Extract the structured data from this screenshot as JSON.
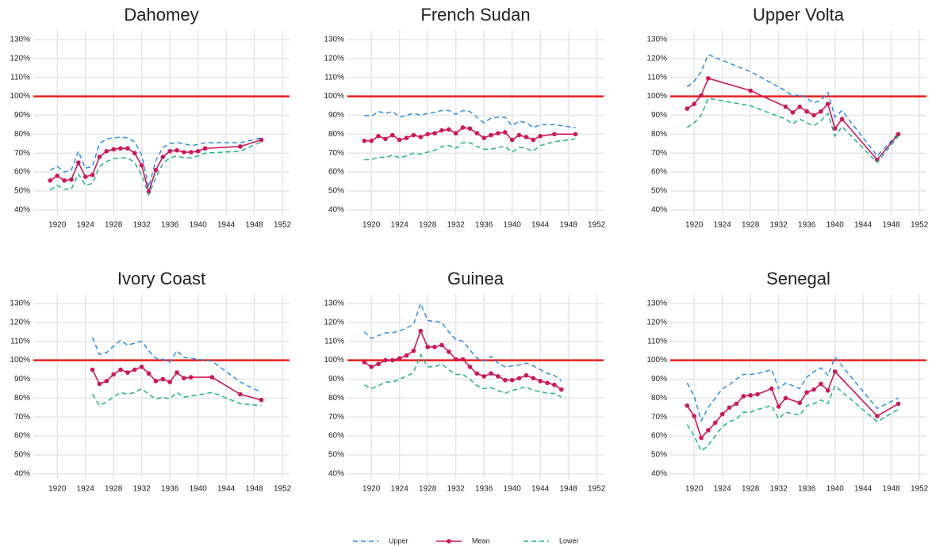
{
  "chart_data": [
    {
      "type": "line",
      "title": "Dahomey",
      "x": [
        1919,
        1920,
        1921,
        1922,
        1923,
        1924,
        1925,
        1926,
        1927,
        1928,
        1929,
        1930,
        1931,
        1932,
        1933,
        1934,
        1935,
        1936,
        1937,
        1938,
        1939,
        1940,
        1941,
        1946,
        1949
      ],
      "series": [
        {
          "values": [
            61,
            63,
            60,
            61,
            71,
            62,
            63,
            75,
            77.5,
            78,
            78.5,
            78,
            76,
            69,
            52,
            66,
            73,
            75,
            75.5,
            75,
            74,
            74.5,
            75.5,
            75.5,
            78
          ]
        },
        {
          "values": [
            55.5,
            58,
            55.5,
            56,
            65,
            57.5,
            58.5,
            68,
            71,
            72,
            72.5,
            72.5,
            70,
            63.5,
            49.5,
            61,
            68,
            71,
            71.5,
            70.5,
            70.5,
            71,
            72.5,
            73.5,
            77
          ]
        },
        {
          "values": [
            50.5,
            53,
            51,
            51,
            59,
            53,
            54,
            63,
            65.5,
            67,
            67.5,
            67.5,
            65,
            58.5,
            48,
            57,
            64.5,
            67.5,
            68.5,
            67.5,
            67.5,
            68.5,
            70,
            71,
            76
          ]
        }
      ],
      "xlim": [
        1916.6,
        1953
      ],
      "ylim": [
        37,
        135
      ],
      "xticks": [
        1920,
        1924,
        1928,
        1932,
        1936,
        1940,
        1944,
        1948,
        1952
      ],
      "yticks": [
        {
          "value": 40,
          "label": "40%"
        },
        {
          "value": 50,
          "label": "50%"
        },
        {
          "value": 60,
          "label": "60%"
        },
        {
          "value": 70,
          "label": "70%"
        },
        {
          "value": 80,
          "label": "80%"
        },
        {
          "value": 90,
          "label": "90%"
        },
        {
          "value": 100,
          "label": "100%"
        },
        {
          "value": 110,
          "label": "110%"
        },
        {
          "value": 120,
          "label": "120%"
        },
        {
          "value": 130,
          "label": "130%"
        }
      ],
      "hline": 100,
      "hline_color": "#e8201c",
      "grid": true
    },
    {
      "type": "line",
      "title": "French Sudan",
      "x": [
        1919,
        1920,
        1921,
        1922,
        1923,
        1924,
        1925,
        1926,
        1927,
        1928,
        1929,
        1930,
        1931,
        1932,
        1933,
        1934,
        1935,
        1936,
        1937,
        1938,
        1939,
        1940,
        1941,
        1942,
        1943,
        1944,
        1946,
        1949
      ],
      "series": [
        {
          "values": [
            90,
            89.5,
            92,
            91,
            92,
            89,
            90,
            91,
            90,
            91,
            91.5,
            92.5,
            92.5,
            90.5,
            92.5,
            92,
            89,
            86,
            88.5,
            89,
            89,
            84.5,
            87,
            86,
            83.5,
            85,
            85,
            83.5
          ]
        },
        {
          "values": [
            76.5,
            76.5,
            79,
            77.5,
            79.5,
            77,
            78,
            79.5,
            78.5,
            80,
            80.5,
            82,
            82.5,
            80.5,
            83.5,
            83,
            80.5,
            78,
            79.5,
            80.5,
            81,
            77,
            79.5,
            78.5,
            77,
            79,
            80,
            80
          ]
        },
        {
          "values": [
            66.5,
            66.5,
            68,
            67.5,
            69,
            67.5,
            68.5,
            70,
            69.5,
            70.5,
            71.5,
            73.5,
            74,
            72.5,
            75.5,
            75.5,
            73.5,
            72,
            72,
            73,
            73.5,
            70.5,
            73,
            72.5,
            71,
            74,
            76,
            77.5
          ]
        }
      ],
      "xlim": [
        1916.6,
        1953
      ],
      "ylim": [
        37,
        135
      ],
      "xticks": [
        1920,
        1924,
        1928,
        1932,
        1936,
        1940,
        1944,
        1948,
        1952
      ],
      "yticks": [
        {
          "value": 40,
          "label": "40%"
        },
        {
          "value": 50,
          "label": "50%"
        },
        {
          "value": 60,
          "label": "60%"
        },
        {
          "value": 70,
          "label": "70%"
        },
        {
          "value": 80,
          "label": "80%"
        },
        {
          "value": 90,
          "label": "90%"
        },
        {
          "value": 100,
          "label": "100%"
        },
        {
          "value": 110,
          "label": "110%"
        },
        {
          "value": 120,
          "label": "120%"
        },
        {
          "value": 130,
          "label": "130%"
        }
      ],
      "hline": 100,
      "hline_color": "#e8201c",
      "grid": true
    },
    {
      "type": "line",
      "title": "Upper Volta",
      "x": [
        1919,
        1920,
        1921,
        1922,
        1928,
        1933,
        1934,
        1935,
        1936,
        1937,
        1938,
        1939,
        1940,
        1941,
        1946,
        1949
      ],
      "series": [
        {
          "values": [
            105,
            108,
            113,
            122,
            113,
            103,
            100,
            101,
            99,
            96.5,
            98,
            102,
            89,
            92.5,
            68.5,
            80.5
          ]
        },
        {
          "values": [
            93.5,
            96,
            100.5,
            109.5,
            103,
            94.5,
            91.5,
            94.5,
            92,
            90,
            92,
            96,
            83,
            88,
            66.5,
            80
          ]
        },
        {
          "values": [
            83.5,
            86,
            90,
            99,
            95,
            88,
            85.5,
            88,
            86,
            84.5,
            87,
            91,
            79,
            84,
            65,
            79
          ]
        }
      ],
      "xlim": [
        1916.6,
        1953
      ],
      "ylim": [
        37,
        135
      ],
      "xticks": [
        1920,
        1924,
        1928,
        1932,
        1936,
        1940,
        1944,
        1948,
        1952
      ],
      "yticks": [
        {
          "value": 40,
          "label": "40%"
        },
        {
          "value": 50,
          "label": "50%"
        },
        {
          "value": 60,
          "label": "60%"
        },
        {
          "value": 70,
          "label": "70%"
        },
        {
          "value": 80,
          "label": "80%"
        },
        {
          "value": 90,
          "label": "90%"
        },
        {
          "value": 100,
          "label": "100%"
        },
        {
          "value": 110,
          "label": "110%"
        },
        {
          "value": 120,
          "label": "120%"
        },
        {
          "value": 130,
          "label": "130%"
        }
      ],
      "hline": 100,
      "hline_color": "#e8201c",
      "grid": true
    },
    {
      "type": "line",
      "title": "Ivory Coast",
      "x": [
        1925,
        1926,
        1927,
        1928,
        1929,
        1930,
        1931,
        1932,
        1933,
        1934,
        1935,
        1936,
        1937,
        1938,
        1939,
        1942,
        1946,
        1949
      ],
      "series": [
        {
          "values": [
            112,
            103,
            104,
            107.5,
            110.5,
            108,
            109,
            110,
            105,
            101,
            100.5,
            99,
            105,
            101.5,
            101,
            99.5,
            88.5,
            83
          ]
        },
        {
          "values": [
            95,
            87.5,
            89,
            92.5,
            95,
            93.5,
            95,
            96.5,
            93,
            89,
            90,
            88.5,
            93.5,
            90.5,
            91,
            91,
            82,
            79
          ]
        },
        {
          "values": [
            82,
            76,
            78,
            80.5,
            83,
            82,
            83,
            85,
            82,
            79.5,
            80.5,
            79.5,
            83,
            80.5,
            81,
            83,
            77,
            76
          ]
        }
      ],
      "xlim": [
        1916.6,
        1953
      ],
      "ylim": [
        37,
        135
      ],
      "xticks": [
        1920,
        1924,
        1928,
        1932,
        1936,
        1940,
        1944,
        1948,
        1952
      ],
      "yticks": [
        {
          "value": 40,
          "label": "40%"
        },
        {
          "value": 50,
          "label": "50%"
        },
        {
          "value": 60,
          "label": "60%"
        },
        {
          "value": 70,
          "label": "70%"
        },
        {
          "value": 80,
          "label": "80%"
        },
        {
          "value": 90,
          "label": "90%"
        },
        {
          "value": 100,
          "label": "100%"
        },
        {
          "value": 110,
          "label": "110%"
        },
        {
          "value": 120,
          "label": "120%"
        },
        {
          "value": 130,
          "label": "130%"
        }
      ],
      "hline": 100,
      "hline_color": "#e8201c",
      "grid": true
    },
    {
      "type": "line",
      "title": "Guinea",
      "x": [
        1919,
        1920,
        1921,
        1922,
        1923,
        1924,
        1925,
        1926,
        1927,
        1928,
        1929,
        1930,
        1931,
        1932,
        1933,
        1934,
        1935,
        1936,
        1937,
        1938,
        1939,
        1940,
        1941,
        1942,
        1943,
        1944,
        1945,
        1946,
        1947
      ],
      "series": [
        {
          "values": [
            115,
            111.5,
            113,
            114.5,
            114.5,
            115.5,
            117,
            119,
            130,
            121,
            120.5,
            120,
            115,
            111,
            110,
            105.5,
            101,
            99.5,
            102,
            98.5,
            96.5,
            97,
            97.5,
            98.5,
            97,
            95,
            93,
            92,
            89
          ]
        },
        {
          "values": [
            99,
            96.5,
            98,
            100,
            100,
            101,
            102.5,
            105,
            115.5,
            107,
            107,
            108,
            104.5,
            100.5,
            100.5,
            96.5,
            93,
            91.5,
            93,
            91.5,
            89.5,
            89.5,
            90.5,
            92,
            90.5,
            89,
            88,
            87,
            84.5
          ]
        },
        {
          "values": [
            87,
            85,
            86.5,
            88.5,
            88.5,
            90,
            91.5,
            93.5,
            103,
            96.5,
            96.5,
            98,
            95,
            92.5,
            92.5,
            90,
            86.5,
            85,
            85.5,
            84,
            82.5,
            84,
            85,
            86,
            84,
            83.5,
            82.5,
            82.5,
            80.5
          ]
        }
      ],
      "xlim": [
        1916.6,
        1953
      ],
      "ylim": [
        37,
        135
      ],
      "xticks": [
        1920,
        1924,
        1928,
        1932,
        1936,
        1940,
        1944,
        1948,
        1952
      ],
      "yticks": [
        {
          "value": 40,
          "label": "40%"
        },
        {
          "value": 50,
          "label": "50%"
        },
        {
          "value": 60,
          "label": "60%"
        },
        {
          "value": 70,
          "label": "70%"
        },
        {
          "value": 80,
          "label": "80%"
        },
        {
          "value": 90,
          "label": "90%"
        },
        {
          "value": 100,
          "label": "100%"
        },
        {
          "value": 110,
          "label": "110%"
        },
        {
          "value": 120,
          "label": "120%"
        },
        {
          "value": 130,
          "label": "130%"
        }
      ],
      "hline": 100,
      "hline_color": "#e8201c",
      "grid": true
    },
    {
      "type": "line",
      "title": "Senegal",
      "x": [
        1919,
        1920,
        1921,
        1922,
        1923,
        1924,
        1925,
        1926,
        1927,
        1928,
        1929,
        1931,
        1932,
        1933,
        1935,
        1936,
        1937,
        1938,
        1939,
        1940,
        1946,
        1949
      ],
      "series": [
        {
          "values": [
            88,
            81,
            68,
            75,
            80,
            85,
            87,
            90,
            92.5,
            92.5,
            93,
            95,
            85,
            88,
            85,
            91,
            94,
            96,
            92,
            101.5,
            74.5,
            80
          ]
        },
        {
          "values": [
            76,
            70.5,
            59,
            63,
            67,
            71.5,
            75,
            77,
            81,
            81.5,
            82,
            85,
            75.5,
            80,
            77.5,
            83,
            84.5,
            87.5,
            84,
            94,
            70.5,
            77
          ]
        },
        {
          "values": [
            66,
            60,
            52,
            55,
            60,
            65,
            67.5,
            69,
            72.5,
            72.5,
            74,
            76,
            69,
            72.5,
            71,
            76,
            77,
            79,
            77,
            86.5,
            67.5,
            74
          ]
        }
      ],
      "xlim": [
        1916.6,
        1953
      ],
      "ylim": [
        37,
        135
      ],
      "xticks": [
        1920,
        1924,
        1928,
        1932,
        1936,
        1940,
        1944,
        1948,
        1952
      ],
      "yticks": [
        {
          "value": 40,
          "label": "40%"
        },
        {
          "value": 50,
          "label": "50%"
        },
        {
          "value": 60,
          "label": "60%"
        },
        {
          "value": 70,
          "label": "70%"
        },
        {
          "value": 80,
          "label": "80%"
        },
        {
          "value": 90,
          "label": "90%"
        },
        {
          "value": 100,
          "label": "100%"
        },
        {
          "value": 110,
          "label": "110%"
        },
        {
          "value": 120,
          "label": "120%"
        },
        {
          "value": 130,
          "label": "130%"
        }
      ],
      "hline": 100,
      "hline_color": "#e8201c",
      "grid": true
    }
  ],
  "legend": [
    {
      "name": "Upper",
      "color": "#2b8ee6",
      "dashed": true,
      "markers": false
    },
    {
      "name": "Mean",
      "color": "#d0155a",
      "dashed": false,
      "markers": true
    },
    {
      "name": "Lower",
      "color": "#1fb583",
      "dashed": true,
      "markers": false
    }
  ]
}
